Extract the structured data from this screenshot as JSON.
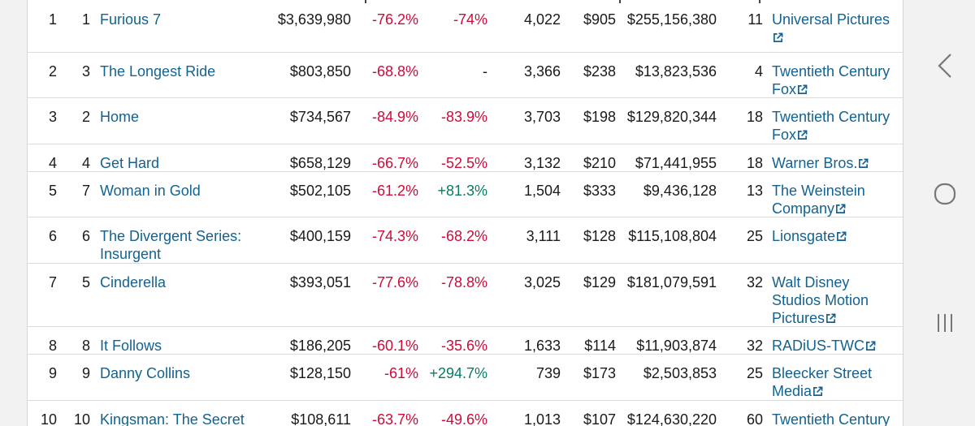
{
  "rows": [
    {
      "rank": "1",
      "last_week": "1",
      "title": "Furious 7",
      "gross": "$3,639,980",
      "lw_change": "-76.2%",
      "yoy_change": "-74%",
      "theaters": "4,022",
      "average": "$905",
      "total_gross": "$255,156,380",
      "weeks": "11",
      "distributor": "Universal Pictures"
    },
    {
      "rank": "2",
      "last_week": "3",
      "title": "The Longest Ride",
      "gross": "$803,850",
      "lw_change": "-68.8%",
      "yoy_change": "-",
      "theaters": "3,366",
      "average": "$238",
      "total_gross": "$13,823,536",
      "weeks": "4",
      "distributor": "Twentieth Century Fox"
    },
    {
      "rank": "3",
      "last_week": "2",
      "title": "Home",
      "gross": "$734,567",
      "lw_change": "-84.9%",
      "yoy_change": "-83.9%",
      "theaters": "3,703",
      "average": "$198",
      "total_gross": "$129,820,344",
      "weeks": "18",
      "distributor": "Twentieth Century Fox"
    },
    {
      "rank": "4",
      "last_week": "4",
      "title": "Get Hard",
      "gross": "$658,129",
      "lw_change": "-66.7%",
      "yoy_change": "-52.5%",
      "theaters": "3,132",
      "average": "$210",
      "total_gross": "$71,441,955",
      "weeks": "18",
      "distributor": "Warner Bros."
    },
    {
      "rank": "5",
      "last_week": "7",
      "title": "Woman in Gold",
      "gross": "$502,105",
      "lw_change": "-61.2%",
      "yoy_change": "+81.3%",
      "theaters": "1,504",
      "average": "$333",
      "total_gross": "$9,436,128",
      "weeks": "13",
      "distributor": "The Weinstein Company"
    },
    {
      "rank": "6",
      "last_week": "6",
      "title": "The Divergent Series: Insurgent",
      "gross": "$400,159",
      "lw_change": "-74.3%",
      "yoy_change": "-68.2%",
      "theaters": "3,111",
      "average": "$128",
      "total_gross": "$115,108,804",
      "weeks": "25",
      "distributor": "Lionsgate"
    },
    {
      "rank": "7",
      "last_week": "5",
      "title": "Cinderella",
      "gross": "$393,051",
      "lw_change": "-77.6%",
      "yoy_change": "-78.8%",
      "theaters": "3,025",
      "average": "$129",
      "total_gross": "$181,079,591",
      "weeks": "32",
      "distributor": "Walt Disney Studios Motion Pictures"
    },
    {
      "rank": "8",
      "last_week": "8",
      "title": "It Follows",
      "gross": "$186,205",
      "lw_change": "-60.1%",
      "yoy_change": "-35.6%",
      "theaters": "1,633",
      "average": "$114",
      "total_gross": "$11,903,874",
      "weeks": "32",
      "distributor": "RADiUS-TWC"
    },
    {
      "rank": "9",
      "last_week": "9",
      "title": "Danny Collins",
      "gross": "$128,150",
      "lw_change": "-61%",
      "yoy_change": "+294.7%",
      "theaters": "739",
      "average": "$173",
      "total_gross": "$2,503,853",
      "weeks": "25",
      "distributor": "Bleecker Street Media"
    },
    {
      "rank": "10",
      "last_week": "10",
      "title": "Kingsman: The Secret",
      "gross": "$108,611",
      "lw_change": "-63.7%",
      "yoy_change": "-49.6%",
      "theaters": "1,013",
      "average": "$107",
      "total_gross": "$124,630,220",
      "weeks": "60",
      "distributor": "Twentieth Century"
    }
  ],
  "colors": {
    "link": "#136290",
    "negative": "#cc0c39",
    "positive": "#067d62",
    "nav_icons": "#777777"
  },
  "icons": {
    "external_link": "external-link-icon",
    "back": "back-chevron-icon",
    "home": "home-circle-icon",
    "recents": "recents-icon"
  }
}
